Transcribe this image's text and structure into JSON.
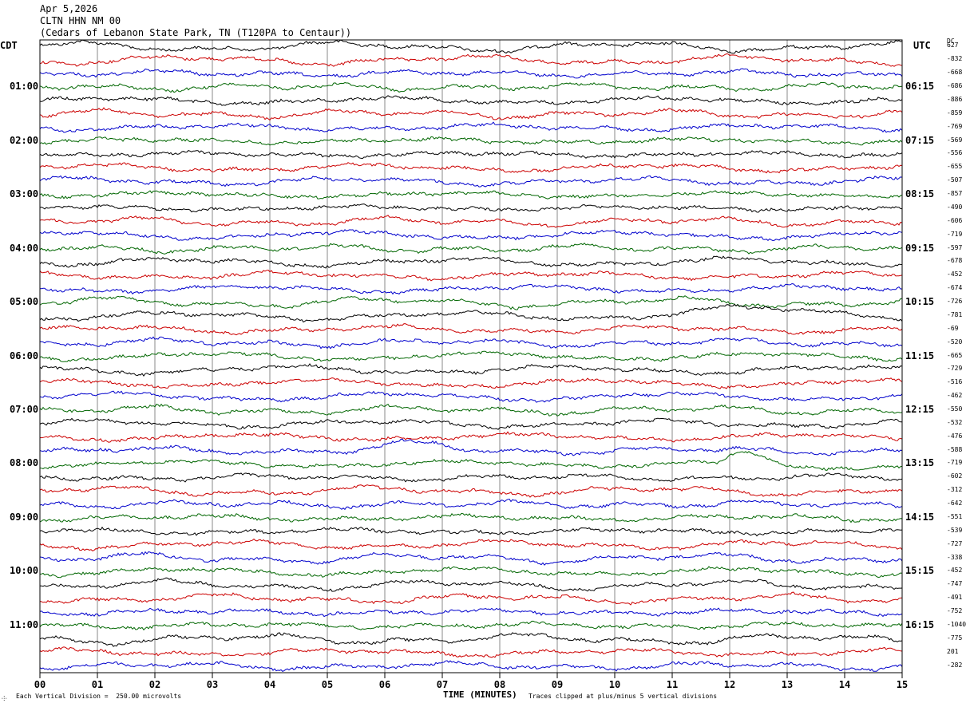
{
  "header": {
    "date": "Apr 5,2026",
    "station": "CLTN HHN NM 00",
    "location": "(Cedars of Lebanon State Park, TN (T120PA to Centaur))"
  },
  "left_label": "CDT",
  "right_label": "UTC",
  "dc_label": "DC",
  "dc_offsets": [
    "627",
    "-832",
    "-668",
    "-686",
    "-886",
    "-859",
    "-769",
    "-569",
    "-556",
    "-655",
    "-507",
    "-857",
    "-490",
    "-606",
    "-719",
    "-597",
    "-678",
    "-452",
    "-674",
    "-726",
    "-781",
    "-69",
    "-520",
    "-665",
    "-729",
    "-516",
    "-462",
    "-550",
    "-532",
    "-476",
    "-588",
    "-719",
    "-602",
    "-312",
    "-642",
    "-551",
    "-539",
    "-727",
    "-338",
    "-452",
    "-747",
    "-491",
    "-752",
    "-1040",
    "-775",
    "201",
    "-282"
  ],
  "colors": {
    "trace_cycle": [
      "#000000",
      "#cc0000",
      "#0000cc",
      "#006600"
    ],
    "grid": "#888888",
    "frame": "#000000"
  },
  "footer": {
    "scale_note": "Each Vertical Division =  250.00 microvolts",
    "xlabel": "TIME (MINUTES)",
    "clip_note": "Traces clipped at plus/minus 5 vertical divisions"
  },
  "chart_data": {
    "type": "line",
    "title": "CLTN HHN NM 00",
    "xlabel": "TIME (MINUTES)",
    "xlim": [
      0,
      15
    ],
    "x_ticks": [
      "00",
      "01",
      "02",
      "03",
      "04",
      "05",
      "06",
      "07",
      "08",
      "09",
      "10",
      "11",
      "12",
      "13",
      "14",
      "15"
    ],
    "trace_count": 47,
    "minutes_per_trace": 15,
    "first_trace_local": "00:15",
    "left_time_labels": [
      {
        "trace": 3,
        "label": "01:00"
      },
      {
        "trace": 7,
        "label": "02:00"
      },
      {
        "trace": 11,
        "label": "03:00"
      },
      {
        "trace": 15,
        "label": "04:00"
      },
      {
        "trace": 19,
        "label": "05:00"
      },
      {
        "trace": 23,
        "label": "06:00"
      },
      {
        "trace": 27,
        "label": "07:00"
      },
      {
        "trace": 31,
        "label": "08:00"
      },
      {
        "trace": 35,
        "label": "09:00"
      },
      {
        "trace": 39,
        "label": "10:00"
      },
      {
        "trace": 43,
        "label": "11:00"
      }
    ],
    "right_time_labels": [
      {
        "trace": 3,
        "label": "06:15"
      },
      {
        "trace": 7,
        "label": "07:15"
      },
      {
        "trace": 11,
        "label": "08:15"
      },
      {
        "trace": 15,
        "label": "09:15"
      },
      {
        "trace": 19,
        "label": "10:15"
      },
      {
        "trace": 23,
        "label": "11:15"
      },
      {
        "trace": 27,
        "label": "12:15"
      },
      {
        "trace": 31,
        "label": "13:15"
      },
      {
        "trace": 35,
        "label": "14:15"
      },
      {
        "trace": 39,
        "label": "15:15"
      },
      {
        "trace": 43,
        "label": "16:15"
      }
    ],
    "trace_colors_cycle": [
      "black",
      "red",
      "blue",
      "green"
    ],
    "events": [
      {
        "trace": 31,
        "minute_start": 11.8,
        "minute_peak": 12.3,
        "minute_end": 13.2,
        "description": "larger excursion"
      },
      {
        "trace": 20,
        "minute_start": 10.5,
        "minute_end": 15,
        "description": "slow drift"
      },
      {
        "trace": 30,
        "minute_start": 5.5,
        "minute_end": 7.5,
        "description": "bump"
      }
    ]
  }
}
